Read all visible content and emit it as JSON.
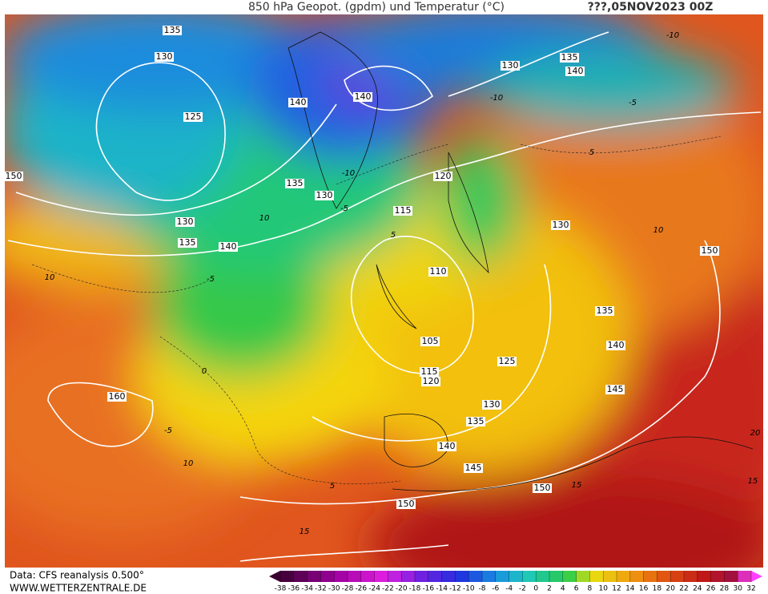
{
  "header": {
    "title": "850 hPa Geopot. (gpdm) und Temperatur (°C)",
    "date": "???,05NOV2023 00Z"
  },
  "geopotential_labels": [
    "135",
    "130",
    "125",
    "130",
    "135",
    "140",
    "150",
    "140",
    "140",
    "135",
    "130",
    "120",
    "115",
    "110",
    "105",
    "115",
    "120",
    "125",
    "130",
    "135",
    "140",
    "145",
    "150",
    "150",
    "160",
    "130",
    "135",
    "140",
    "130",
    "150",
    "135",
    "140",
    "145"
  ],
  "temperature_labels": [
    "-5",
    "10",
    "5",
    "-10",
    "0",
    "-5",
    "10",
    "5",
    "15",
    "10",
    "-5",
    "10",
    "5",
    "-5",
    "-10",
    "15",
    "20",
    "15",
    "-10"
  ],
  "footer": {
    "source": "Data: CFS reanalysis 0.500°",
    "site": "WWW.WETTERZENTRALE.DE"
  },
  "scale": {
    "ticks": [
      -38,
      -36,
      -34,
      -32,
      -30,
      -28,
      -26,
      -24,
      -22,
      -20,
      -18,
      -16,
      -14,
      -12,
      -10,
      -8,
      -6,
      -4,
      -2,
      0,
      2,
      4,
      6,
      8,
      10,
      12,
      14,
      16,
      18,
      20,
      22,
      24,
      26,
      28,
      30,
      32
    ]
  }
}
